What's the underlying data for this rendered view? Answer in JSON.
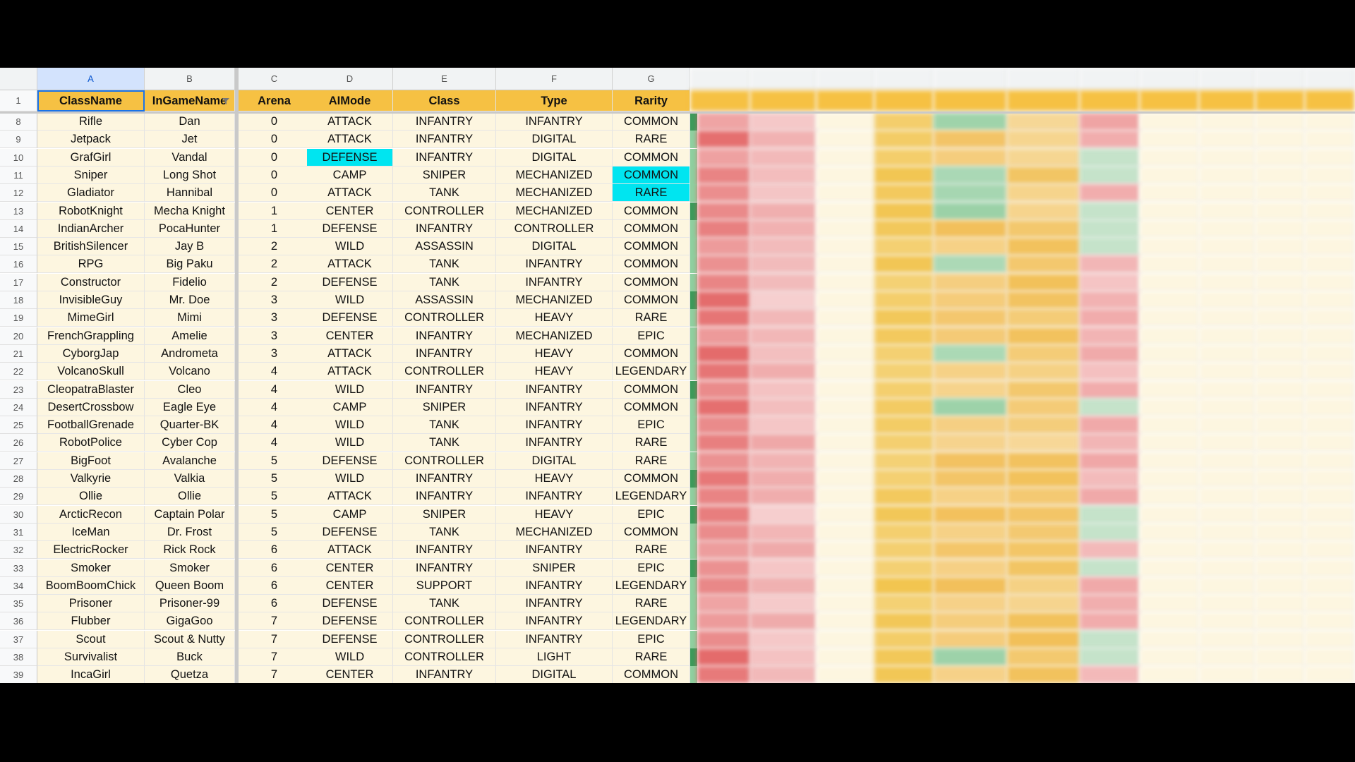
{
  "columns": [
    {
      "letter": "A",
      "header": "ClassName"
    },
    {
      "letter": "B",
      "header": "InGameName"
    },
    {
      "letter": "C",
      "header": "Arena"
    },
    {
      "letter": "D",
      "header": "AIMode"
    },
    {
      "letter": "E",
      "header": "Class"
    },
    {
      "letter": "F",
      "header": "Type"
    },
    {
      "letter": "G",
      "header": "Rarity"
    }
  ],
  "header_row_number": "1",
  "rows": [
    {
      "n": "8",
      "a": "Rifle",
      "b": "Dan",
      "c": "0",
      "d": "ATTACK",
      "e": "INFANTRY",
      "f": "INFANTRY",
      "g": "COMMON"
    },
    {
      "n": "9",
      "a": "Jetpack",
      "b": "Jet",
      "c": "0",
      "d": "ATTACK",
      "e": "INFANTRY",
      "f": "DIGITAL",
      "g": "RARE"
    },
    {
      "n": "10",
      "a": "GrafGirl",
      "b": "Vandal",
      "c": "0",
      "d": "DEFENSE",
      "e": "INFANTRY",
      "f": "DIGITAL",
      "g": "COMMON"
    },
    {
      "n": "11",
      "a": "Sniper",
      "b": "Long Shot",
      "c": "0",
      "d": "CAMP",
      "e": "SNIPER",
      "f": "MECHANIZED",
      "g": "COMMON"
    },
    {
      "n": "12",
      "a": "Gladiator",
      "b": "Hannibal",
      "c": "0",
      "d": "ATTACK",
      "e": "TANK",
      "f": "MECHANIZED",
      "g": "RARE"
    },
    {
      "n": "13",
      "a": "RobotKnight",
      "b": "Mecha Knight",
      "c": "1",
      "d": "CENTER",
      "e": "CONTROLLER",
      "f": "MECHANIZED",
      "g": "COMMON"
    },
    {
      "n": "14",
      "a": "IndianArcher",
      "b": "PocaHunter",
      "c": "1",
      "d": "DEFENSE",
      "e": "INFANTRY",
      "f": "CONTROLLER",
      "g": "COMMON"
    },
    {
      "n": "15",
      "a": "BritishSilencer",
      "b": "Jay B",
      "c": "2",
      "d": "WILD",
      "e": "ASSASSIN",
      "f": "DIGITAL",
      "g": "COMMON"
    },
    {
      "n": "16",
      "a": "RPG",
      "b": "Big Paku",
      "c": "2",
      "d": "ATTACK",
      "e": "TANK",
      "f": "INFANTRY",
      "g": "COMMON"
    },
    {
      "n": "17",
      "a": "Constructor",
      "b": "Fidelio",
      "c": "2",
      "d": "DEFENSE",
      "e": "TANK",
      "f": "INFANTRY",
      "g": "COMMON"
    },
    {
      "n": "18",
      "a": "InvisibleGuy",
      "b": "Mr. Doe",
      "c": "3",
      "d": "WILD",
      "e": "ASSASSIN",
      "f": "MECHANIZED",
      "g": "COMMON"
    },
    {
      "n": "19",
      "a": "MimeGirl",
      "b": "Mimi",
      "c": "3",
      "d": "DEFENSE",
      "e": "CONTROLLER",
      "f": "HEAVY",
      "g": "RARE"
    },
    {
      "n": "20",
      "a": "FrenchGrappling",
      "b": "Amelie",
      "c": "3",
      "d": "CENTER",
      "e": "INFANTRY",
      "f": "MECHANIZED",
      "g": "EPIC"
    },
    {
      "n": "21",
      "a": "CyborgJap",
      "b": "Andrometa",
      "c": "3",
      "d": "ATTACK",
      "e": "INFANTRY",
      "f": "HEAVY",
      "g": "COMMON"
    },
    {
      "n": "22",
      "a": "VolcanoSkull",
      "b": "Volcano",
      "c": "4",
      "d": "ATTACK",
      "e": "CONTROLLER",
      "f": "HEAVY",
      "g": "LEGENDARY"
    },
    {
      "n": "23",
      "a": "CleopatraBlaster",
      "b": "Cleo",
      "c": "4",
      "d": "WILD",
      "e": "INFANTRY",
      "f": "INFANTRY",
      "g": "COMMON"
    },
    {
      "n": "24",
      "a": "DesertCrossbow",
      "b": "Eagle Eye",
      "c": "4",
      "d": "CAMP",
      "e": "SNIPER",
      "f": "INFANTRY",
      "g": "COMMON"
    },
    {
      "n": "25",
      "a": "FootballGrenade",
      "b": "Quarter-BK",
      "c": "4",
      "d": "WILD",
      "e": "TANK",
      "f": "INFANTRY",
      "g": "EPIC"
    },
    {
      "n": "26",
      "a": "RobotPolice",
      "b": "Cyber Cop",
      "c": "4",
      "d": "WILD",
      "e": "TANK",
      "f": "INFANTRY",
      "g": "RARE"
    },
    {
      "n": "27",
      "a": "BigFoot",
      "b": "Avalanche",
      "c": "5",
      "d": "DEFENSE",
      "e": "CONTROLLER",
      "f": "DIGITAL",
      "g": "RARE"
    },
    {
      "n": "28",
      "a": "Valkyrie",
      "b": "Valkia",
      "c": "5",
      "d": "WILD",
      "e": "INFANTRY",
      "f": "HEAVY",
      "g": "COMMON"
    },
    {
      "n": "29",
      "a": "Ollie",
      "b": "Ollie",
      "c": "5",
      "d": "ATTACK",
      "e": "INFANTRY",
      "f": "INFANTRY",
      "g": "LEGENDARY"
    },
    {
      "n": "30",
      "a": "ArcticRecon",
      "b": "Captain Polar",
      "c": "5",
      "d": "CAMP",
      "e": "SNIPER",
      "f": "HEAVY",
      "g": "EPIC"
    },
    {
      "n": "31",
      "a": "IceMan",
      "b": "Dr. Frost",
      "c": "5",
      "d": "DEFENSE",
      "e": "TANK",
      "f": "MECHANIZED",
      "g": "COMMON"
    },
    {
      "n": "32",
      "a": "ElectricRocker",
      "b": "Rick Rock",
      "c": "6",
      "d": "ATTACK",
      "e": "INFANTRY",
      "f": "INFANTRY",
      "g": "RARE"
    },
    {
      "n": "33",
      "a": "Smoker",
      "b": "Smoker",
      "c": "6",
      "d": "CENTER",
      "e": "INFANTRY",
      "f": "SNIPER",
      "g": "EPIC"
    },
    {
      "n": "34",
      "a": "BoomBoomChick",
      "b": "Queen Boom",
      "c": "6",
      "d": "CENTER",
      "e": "SUPPORT",
      "f": "INFANTRY",
      "g": "LEGENDARY"
    },
    {
      "n": "35",
      "a": "Prisoner",
      "b": "Prisoner-99",
      "c": "6",
      "d": "DEFENSE",
      "e": "TANK",
      "f": "INFANTRY",
      "g": "RARE"
    },
    {
      "n": "36",
      "a": "Flubber",
      "b": "GigaGoo",
      "c": "7",
      "d": "DEFENSE",
      "e": "CONTROLLER",
      "f": "INFANTRY",
      "g": "LEGENDARY"
    },
    {
      "n": "37",
      "a": "Scout",
      "b": "Scout & Nutty",
      "c": "7",
      "d": "DEFENSE",
      "e": "CONTROLLER",
      "f": "INFANTRY",
      "g": "EPIC"
    },
    {
      "n": "38",
      "a": "Survivalist",
      "b": "Buck",
      "c": "7",
      "d": "WILD",
      "e": "CONTROLLER",
      "f": "LIGHT",
      "g": "RARE"
    },
    {
      "n": "39",
      "a": "IncaGirl",
      "b": "Quetza",
      "c": "7",
      "d": "CENTER",
      "e": "INFANTRY",
      "f": "DIGITAL",
      "g": "COMMON"
    }
  ],
  "highlights": {
    "cyan": "#00e5f0",
    "header_bg": "#f6c143",
    "row_bg": "#fdf6e0",
    "blur_red": "#e8a0a0",
    "blur_green": "#7fc99a",
    "blur_yellow": "#f2c440"
  },
  "icons": {
    "filter": "filter-icon"
  }
}
